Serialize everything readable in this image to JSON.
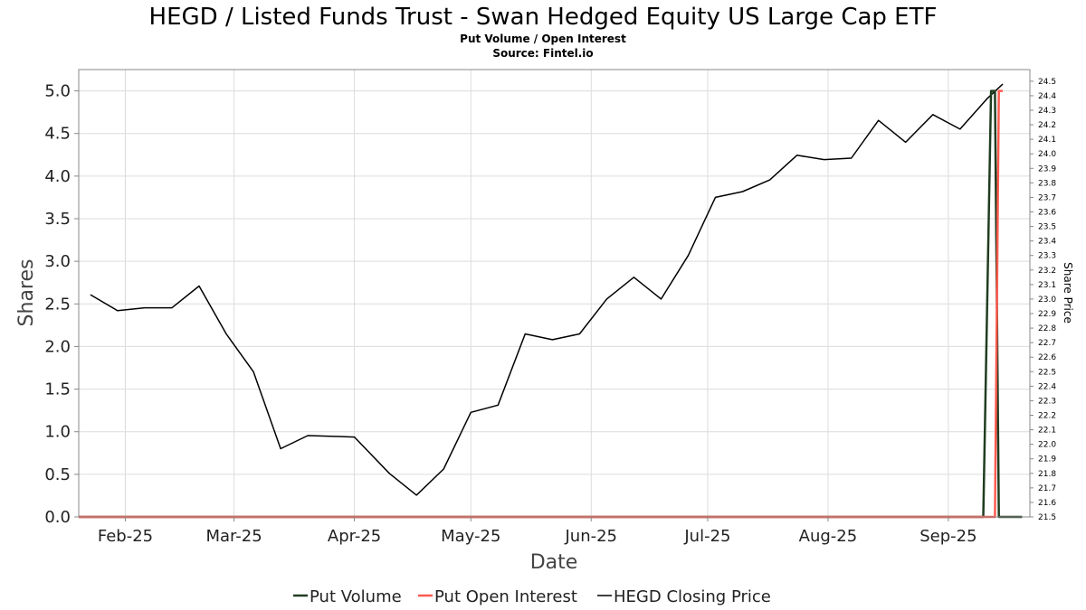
{
  "title": "HEGD / Listed Funds Trust - Swan Hedged Equity US Large Cap ETF",
  "subtitle": "Put Volume / Open Interest",
  "source": "Source: Fintel.io",
  "colors": {
    "put_volume": "#1f3d1f",
    "put_open_interest": "#ff5a4e",
    "closing_price": "#000000"
  },
  "chart_data": {
    "type": "line",
    "title": "HEGD / Listed Funds Trust - Swan Hedged Equity US Large Cap ETF",
    "subtitle": "Put Volume / Open Interest",
    "xlabel": "Date",
    "ylabel": "Shares",
    "y2label": "Share Price",
    "xlim": [
      "2025-01-20",
      "2025-09-22"
    ],
    "ylim": [
      0,
      5.25
    ],
    "y2lim": [
      21.5,
      24.58
    ],
    "grid": true,
    "legend_position": "bottom",
    "x_ticks": [
      {
        "label": "Feb-25",
        "date": "2025-02-01"
      },
      {
        "label": "Mar-25",
        "date": "2025-03-01"
      },
      {
        "label": "Apr-25",
        "date": "2025-04-01"
      },
      {
        "label": "May-25",
        "date": "2025-05-01"
      },
      {
        "label": "Jun-25",
        "date": "2025-06-01"
      },
      {
        "label": "Jul-25",
        "date": "2025-07-01"
      },
      {
        "label": "Aug-25",
        "date": "2025-08-01"
      },
      {
        "label": "Sep-25",
        "date": "2025-09-01"
      }
    ],
    "y_ticks": [
      "0.0",
      "0.5",
      "1.0",
      "1.5",
      "2.0",
      "2.5",
      "3.0",
      "3.5",
      "4.0",
      "4.5",
      "5.0"
    ],
    "y2_ticks": [
      "21.5",
      "21.6",
      "21.7",
      "21.8",
      "21.9",
      "22.0",
      "22.1",
      "22.2",
      "22.3",
      "22.4",
      "22.5",
      "22.6",
      "22.7",
      "22.8",
      "22.9",
      "23.0",
      "23.1",
      "23.2",
      "23.3",
      "23.4",
      "23.5",
      "23.6",
      "23.7",
      "23.8",
      "23.9",
      "24.0",
      "24.1",
      "24.2",
      "24.3",
      "24.4",
      "24.5"
    ],
    "series": [
      {
        "name": "Put Volume",
        "axis": "left",
        "x": [
          "2025-01-20",
          "2025-09-10",
          "2025-09-12",
          "2025-09-13",
          "2025-09-14",
          "2025-09-20"
        ],
        "y": [
          0,
          0,
          5.0,
          5.0,
          0,
          0
        ]
      },
      {
        "name": "Put Open Interest",
        "axis": "left",
        "x": [
          "2025-01-20",
          "2025-09-13",
          "2025-09-14",
          "2025-09-15"
        ],
        "y": [
          0,
          0,
          5.0,
          5.0
        ]
      },
      {
        "name": "HEGD Closing Price",
        "axis": "right",
        "x": [
          "2025-01-23",
          "2025-01-30",
          "2025-02-06",
          "2025-02-13",
          "2025-02-20",
          "2025-02-27",
          "2025-03-06",
          "2025-03-13",
          "2025-03-20",
          "2025-04-01",
          "2025-04-10",
          "2025-04-17",
          "2025-04-24",
          "2025-05-01",
          "2025-05-08",
          "2025-05-15",
          "2025-05-22",
          "2025-05-29",
          "2025-06-05",
          "2025-06-12",
          "2025-06-19",
          "2025-06-26",
          "2025-07-03",
          "2025-07-10",
          "2025-07-17",
          "2025-07-24",
          "2025-07-31",
          "2025-08-07",
          "2025-08-14",
          "2025-08-21",
          "2025-08-28",
          "2025-09-04",
          "2025-09-11",
          "2025-09-15"
        ],
        "y": [
          23.03,
          22.92,
          22.94,
          22.94,
          23.09,
          22.76,
          22.5,
          21.97,
          22.06,
          22.05,
          21.8,
          21.65,
          21.83,
          22.22,
          22.27,
          22.76,
          22.72,
          22.76,
          23.0,
          23.15,
          23.0,
          23.3,
          23.7,
          23.74,
          23.82,
          23.99,
          23.96,
          23.97,
          24.23,
          24.08,
          24.27,
          24.17,
          24.38,
          24.48
        ]
      }
    ]
  }
}
